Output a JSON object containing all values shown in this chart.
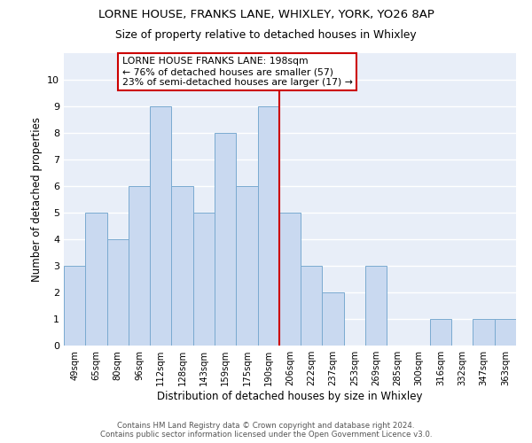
{
  "title": "LORNE HOUSE, FRANKS LANE, WHIXLEY, YORK, YO26 8AP",
  "subtitle": "Size of property relative to detached houses in Whixley",
  "xlabel": "Distribution of detached houses by size in Whixley",
  "ylabel": "Number of detached properties",
  "categories": [
    "49sqm",
    "65sqm",
    "80sqm",
    "96sqm",
    "112sqm",
    "128sqm",
    "143sqm",
    "159sqm",
    "175sqm",
    "190sqm",
    "206sqm",
    "222sqm",
    "237sqm",
    "253sqm",
    "269sqm",
    "285sqm",
    "300sqm",
    "316sqm",
    "332sqm",
    "347sqm",
    "363sqm"
  ],
  "values": [
    3,
    5,
    4,
    6,
    9,
    6,
    5,
    8,
    6,
    9,
    5,
    3,
    2,
    0,
    3,
    0,
    0,
    1,
    0,
    1,
    1
  ],
  "bar_color": "#c9d9f0",
  "bar_edgecolor": "#7aaad0",
  "bg_color": "#e8eef8",
  "grid_color": "#ffffff",
  "vline_x": 9.5,
  "vline_color": "#cc0000",
  "annotation_lines": [
    "LORNE HOUSE FRANKS LANE: 198sqm",
    "← 76% of detached houses are smaller (57)",
    "23% of semi-detached houses are larger (17) →"
  ],
  "annotation_box_edgecolor": "#cc0000",
  "ylim": [
    0,
    11
  ],
  "yticks": [
    0,
    1,
    2,
    3,
    4,
    5,
    6,
    7,
    8,
    9,
    10,
    11
  ],
  "footer_line1": "Contains HM Land Registry data © Crown copyright and database right 2024.",
  "footer_line2": "Contains public sector information licensed under the Open Government Licence v3.0."
}
